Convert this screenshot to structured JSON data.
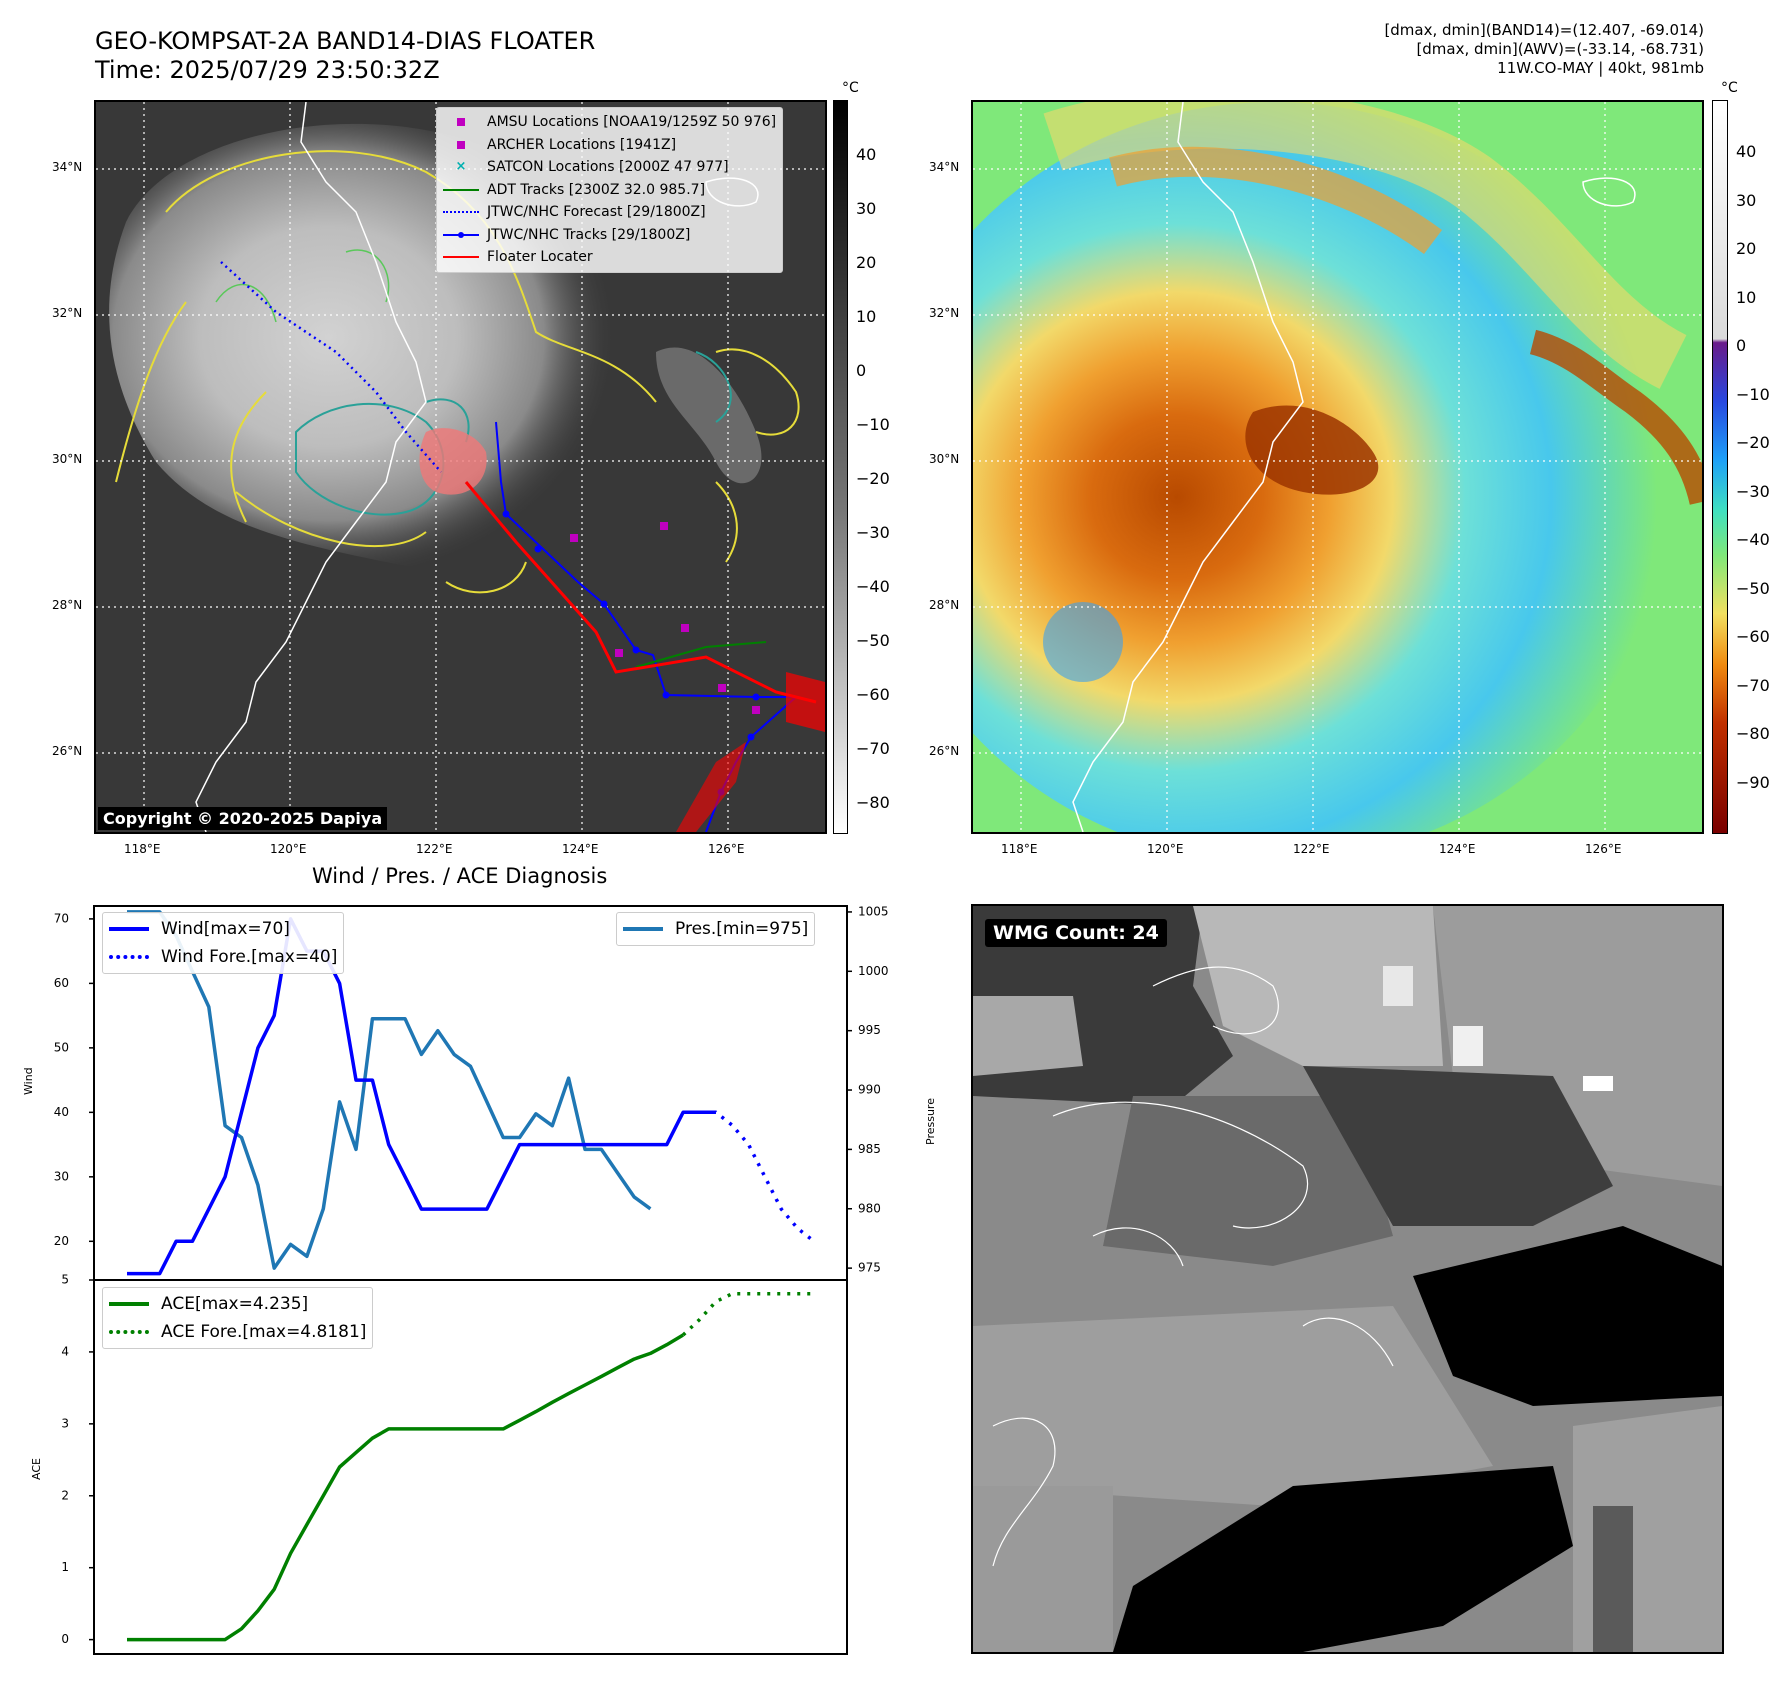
{
  "header": {
    "title_line1": "GEO-KOMPSAT-2A BAND14-DIAS FLOATER",
    "title_line2": "Time: 2025/07/29 23:50:32Z",
    "right_line1": "[dmax, dmin](BAND14)=(12.407, -69.014)",
    "right_line2": "[dmax, dmin](AWV)=(-33.14, -68.731)",
    "right_line3": "11W.CO-MAY | 40kt, 981mb"
  },
  "map": {
    "lat_labels": [
      "34°N",
      "32°N",
      "30°N",
      "28°N",
      "26°N"
    ],
    "lon_labels": [
      "118°E",
      "120°E",
      "122°E",
      "124°E",
      "126°E"
    ],
    "copyright": "Copyright © 2020-2025 Dapiya",
    "legend": [
      {
        "label": "AMSU Locations [NOAA19/1259Z 50 976]",
        "marker": "square",
        "color": "#c000c0"
      },
      {
        "label": "ARCHER Locations [1941Z]",
        "marker": "square",
        "color": "#c000c0"
      },
      {
        "label": "SATCON Locations [2000Z 47 977]",
        "marker": "x",
        "color": "#00b0b0"
      },
      {
        "label": "ADT Tracks [2300Z 32.0 985.7]",
        "marker": "line",
        "color": "#008000"
      },
      {
        "label": "JTWC/NHC Forecast [29/1800Z]",
        "marker": "dotted",
        "color": "#0000ff"
      },
      {
        "label": "JTWC/NHC Tracks [29/1800Z]",
        "marker": "line-dot",
        "color": "#0000ff"
      },
      {
        "label": "Floater Locater",
        "marker": "line",
        "color": "#ff0000"
      }
    ],
    "colorbar_gray": {
      "unit": "°C",
      "ticks": [
        "40",
        "30",
        "20",
        "10",
        "0",
        "−10",
        "−20",
        "−30",
        "−40",
        "−50",
        "−60",
        "−70",
        "−80"
      ]
    },
    "colorbar_color": {
      "unit": "°C",
      "ticks": [
        "40",
        "30",
        "20",
        "10",
        "0",
        "−10",
        "−20",
        "−30",
        "−40",
        "−50",
        "−60",
        "−70",
        "−80",
        "−90"
      ]
    }
  },
  "diagnosis": {
    "title": "Wind / Pres. / ACE Diagnosis",
    "wind_ylabel": "Wind",
    "pres_ylabel": "Pressure",
    "ace_ylabel": "ACE",
    "wind_legend": "Wind[max=70]",
    "wind_fore_legend": "Wind Fore.[max=40]",
    "pres_legend": "Pres.[min=975]",
    "ace_legend": "ACE[max=4.235]",
    "ace_fore_legend": "ACE Fore.[max=4.8181]",
    "wmg_label": "WMG Count: 24"
  },
  "chart_data": [
    {
      "type": "line",
      "title": "Wind / Pres. / ACE Diagnosis",
      "ylabel": "Wind",
      "ylim": [
        14,
        72
      ],
      "yticks": [
        20,
        30,
        40,
        50,
        60,
        70
      ],
      "series": [
        {
          "name": "Wind[max=70]",
          "style": "solid",
          "color": "#0000ff",
          "x": [
            0,
            1,
            2,
            3,
            4,
            5,
            6,
            7,
            8,
            9,
            10,
            11,
            12,
            13,
            14,
            15,
            16,
            17,
            18,
            19,
            20,
            21,
            22,
            23,
            24,
            25,
            26,
            27,
            28,
            29,
            30,
            31,
            32,
            33,
            34,
            35,
            36,
            37,
            38,
            39,
            40,
            41,
            42
          ],
          "values": [
            15,
            15,
            15,
            20,
            20,
            25,
            30,
            40,
            50,
            55,
            70,
            65,
            65,
            60,
            45,
            45,
            35,
            30,
            25,
            25,
            25,
            25,
            25,
            30,
            35,
            35,
            35,
            35,
            35,
            35,
            35,
            35,
            35,
            35,
            40,
            40,
            40,
            null,
            null,
            null,
            null,
            null,
            null
          ]
        },
        {
          "name": "Wind Fore.[max=40]",
          "style": "dotted",
          "color": "#0000ff",
          "x": [
            34,
            35,
            36,
            37,
            38,
            39,
            40,
            41,
            42
          ],
          "values": [
            40,
            40,
            40,
            38,
            35,
            30,
            25,
            22,
            20
          ]
        }
      ]
    },
    {
      "type": "line",
      "ylabel": "Pressure",
      "ylim": [
        974,
        1005.5
      ],
      "yticks": [
        975,
        980,
        985,
        990,
        995,
        1000,
        1005
      ],
      "series": [
        {
          "name": "Pres.[min=975]",
          "style": "solid",
          "color": "#1f77b4",
          "x": [
            0,
            1,
            2,
            3,
            4,
            5,
            6,
            7,
            8,
            9,
            10,
            11,
            12,
            13,
            14,
            15,
            16,
            17,
            18,
            19,
            20,
            21,
            22,
            23,
            24,
            25,
            26,
            27,
            28,
            29,
            30,
            31,
            32,
            33,
            34,
            35,
            36
          ],
          "values": [
            1005,
            1005,
            1005,
            1003,
            1000,
            997,
            987,
            986,
            982,
            975,
            977,
            976,
            980,
            989,
            985,
            996,
            996,
            996,
            993,
            995,
            993,
            992,
            989,
            986,
            986,
            988,
            987,
            991,
            985,
            985,
            983,
            981,
            980,
            null,
            null,
            null,
            null
          ]
        }
      ]
    },
    {
      "type": "line",
      "ylabel": "ACE",
      "ylim": [
        -0.2,
        5
      ],
      "yticks": [
        0,
        1,
        2,
        3,
        4,
        5
      ],
      "series": [
        {
          "name": "ACE[max=4.235]",
          "style": "solid",
          "color": "#008000",
          "x": [
            0,
            1,
            2,
            3,
            4,
            5,
            6,
            7,
            8,
            9,
            10,
            11,
            12,
            13,
            14,
            15,
            16,
            17,
            18,
            19,
            20,
            21,
            22,
            23,
            24,
            25,
            26,
            27,
            28,
            29,
            30,
            31,
            32,
            33,
            34
          ],
          "values": [
            0,
            0,
            0,
            0,
            0,
            0,
            0,
            0.15,
            0.4,
            0.7,
            1.2,
            1.6,
            2.0,
            2.4,
            2.6,
            2.8,
            2.93,
            2.93,
            2.93,
            2.93,
            2.93,
            2.93,
            2.93,
            2.93,
            3.05,
            3.17,
            3.3,
            3.42,
            3.54,
            3.66,
            3.78,
            3.9,
            3.98,
            4.1,
            4.235
          ]
        },
        {
          "name": "ACE Fore.[max=4.8181]",
          "style": "dotted",
          "color": "#008000",
          "x": [
            34,
            35,
            36,
            37,
            38,
            39,
            40,
            41,
            42
          ],
          "values": [
            4.235,
            4.45,
            4.7,
            4.81,
            4.81,
            4.81,
            4.81,
            4.81,
            4.81
          ]
        }
      ]
    }
  ]
}
